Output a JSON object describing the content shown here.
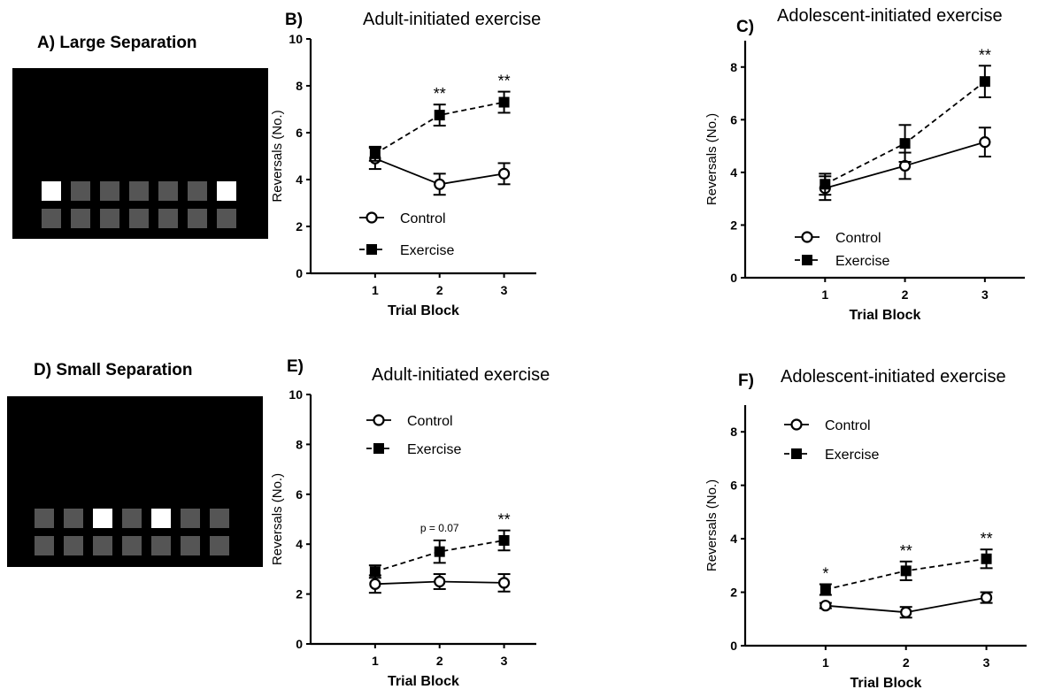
{
  "panels": {
    "a": {
      "label": "A) Large Separation",
      "grid": [
        [
          1,
          0,
          0,
          0,
          0,
          0,
          1
        ],
        [
          0,
          0,
          0,
          0,
          0,
          0,
          0
        ]
      ]
    },
    "d": {
      "label": "D) Small Separation",
      "grid": [
        [
          0,
          0,
          1,
          0,
          1,
          0,
          0
        ],
        [
          0,
          0,
          0,
          0,
          0,
          0,
          0
        ]
      ]
    }
  },
  "legend": {
    "control": "Control",
    "exercise": "Exercise"
  },
  "chart_data": [
    {
      "id": "b",
      "panel_label": "B)",
      "type": "line",
      "title": "Adult-initiated exercise",
      "xlabel": "Trial Block",
      "ylabel": "Reversals (No.)",
      "categories": [
        "1",
        "2",
        "3"
      ],
      "ylim": [
        0,
        10
      ],
      "yticks": [
        "0",
        "2",
        "4",
        "6",
        "8",
        "10"
      ],
      "legend_position": "bottom-left",
      "series": [
        {
          "name": "Control",
          "values": [
            4.9,
            3.8,
            4.25
          ],
          "errors": [
            0.45,
            0.45,
            0.45
          ],
          "marker": "open-circle",
          "dash": false
        },
        {
          "name": "Exercise",
          "values": [
            5.1,
            6.75,
            7.3
          ],
          "errors": [
            0.3,
            0.45,
            0.45
          ],
          "marker": "filled-square",
          "dash": true
        }
      ],
      "annotations": [
        {
          "x": "2",
          "text": "**"
        },
        {
          "x": "3",
          "text": "**"
        }
      ]
    },
    {
      "id": "c",
      "panel_label": "C)",
      "type": "line",
      "title": "Adolescent-initiated exercise",
      "xlabel": "Trial Block",
      "ylabel": "Reversals (No.)",
      "categories": [
        "1",
        "2",
        "3"
      ],
      "ylim": [
        0,
        9
      ],
      "yticks": [
        "0",
        "2",
        "4",
        "6",
        "8"
      ],
      "legend_position": "bottom-left",
      "series": [
        {
          "name": "Control",
          "values": [
            3.4,
            4.25,
            5.15
          ],
          "errors": [
            0.45,
            0.5,
            0.55
          ],
          "marker": "open-circle",
          "dash": false
        },
        {
          "name": "Exercise",
          "values": [
            3.55,
            5.1,
            7.45
          ],
          "errors": [
            0.4,
            0.7,
            0.6
          ],
          "marker": "filled-square",
          "dash": true
        }
      ],
      "annotations": [
        {
          "x": "3",
          "text": "**"
        }
      ]
    },
    {
      "id": "e",
      "panel_label": "E)",
      "type": "line",
      "title": "Adult-initiated exercise",
      "xlabel": "Trial Block",
      "ylabel": "Reversals (No.)",
      "categories": [
        "1",
        "2",
        "3"
      ],
      "ylim": [
        0,
        10
      ],
      "yticks": [
        "0",
        "2",
        "4",
        "6",
        "8",
        "10"
      ],
      "legend_position": "top-left",
      "series": [
        {
          "name": "Control",
          "values": [
            2.4,
            2.5,
            2.45
          ],
          "errors": [
            0.35,
            0.3,
            0.35
          ],
          "marker": "open-circle",
          "dash": false
        },
        {
          "name": "Exercise",
          "values": [
            2.9,
            3.7,
            4.15
          ],
          "errors": [
            0.25,
            0.45,
            0.4
          ],
          "marker": "filled-square",
          "dash": true
        }
      ],
      "annotations": [
        {
          "x": "2",
          "text": "p = 0.07",
          "small": true
        },
        {
          "x": "3",
          "text": "**"
        }
      ]
    },
    {
      "id": "f",
      "panel_label": "F)",
      "type": "line",
      "title": "Adolescent-initiated exercise",
      "xlabel": "Trial Block",
      "ylabel": "Reversals (No.)",
      "categories": [
        "1",
        "2",
        "3"
      ],
      "ylim": [
        0,
        9
      ],
      "yticks": [
        "0",
        "2",
        "4",
        "6",
        "8"
      ],
      "legend_position": "top-left",
      "series": [
        {
          "name": "Control",
          "values": [
            1.5,
            1.25,
            1.8
          ],
          "errors": [
            0.1,
            0.2,
            0.2
          ],
          "marker": "open-circle",
          "dash": false
        },
        {
          "name": "Exercise",
          "values": [
            2.1,
            2.8,
            3.25
          ],
          "errors": [
            0.2,
            0.35,
            0.35
          ],
          "marker": "filled-square",
          "dash": true
        }
      ],
      "annotations": [
        {
          "x": "1",
          "text": "*"
        },
        {
          "x": "2",
          "text": "**"
        },
        {
          "x": "3",
          "text": "**"
        }
      ]
    }
  ]
}
